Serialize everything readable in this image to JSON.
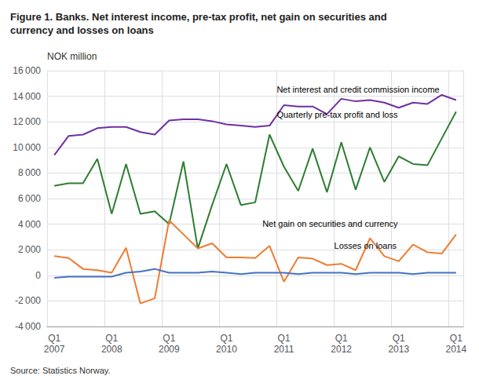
{
  "chart_data": {
    "type": "line",
    "title": "Figure 1. Banks. Net interest income, pre-tax profit, net gain on securities and\ncurrency and losses on loans",
    "y_label": "NOK million",
    "source": "Source: Statistics Norway.",
    "categories": [
      "Q1\n2007",
      null,
      null,
      null,
      "Q1\n2008",
      null,
      null,
      null,
      "Q1\n2009",
      null,
      null,
      null,
      "Q1\n2010",
      null,
      null,
      null,
      "Q1\n2011",
      null,
      null,
      null,
      "Q1\n2012",
      null,
      null,
      null,
      "Q1\n2013",
      null,
      null,
      null,
      "Q1\n2014"
    ],
    "series": [
      {
        "color": "#7030A0",
        "values": [
          9400,
          10900,
          11000,
          11500,
          11600,
          11600,
          11200,
          11000,
          12100,
          12200,
          12200,
          12050,
          11800,
          11700,
          11600,
          11700,
          13300,
          13200,
          13200,
          12600,
          13800,
          13600,
          13700,
          13500,
          13100,
          13500,
          13400,
          14100,
          13700
        ]
      },
      {
        "color": "#2E7D32",
        "values": [
          7000,
          7200,
          7200,
          9100,
          4800,
          8700,
          4800,
          5000,
          4000,
          8900,
          2100,
          5500,
          8700,
          5500,
          5700,
          11000,
          8500,
          6600,
          9900,
          6500,
          10400,
          6700,
          10000,
          7300,
          9300,
          8700,
          8600,
          10700,
          12800
        ]
      },
      {
        "color": "#ED7D31",
        "values": [
          1500,
          1350,
          500,
          400,
          200,
          2150,
          -2200,
          -1800,
          4300,
          3200,
          2100,
          2500,
          1400,
          1400,
          1350,
          2300,
          -500,
          1400,
          1300,
          800,
          900,
          400,
          2900,
          1500,
          1100,
          2400,
          1800,
          1700,
          3200
        ]
      },
      {
        "color": "#4472C4",
        "values": [
          -200,
          -100,
          -100,
          -100,
          -100,
          200,
          300,
          500,
          200,
          200,
          200,
          300,
          200,
          100,
          200,
          200,
          200,
          100,
          200,
          200,
          200,
          100,
          200,
          200,
          200,
          100,
          200,
          200,
          200
        ]
      }
    ],
    "annotations": [
      {
        "text": "Net interest and credit commission income",
        "x": 15.5,
        "y": 14200
      },
      {
        "text": "Quarterly pre-tax profit and loss",
        "x": 15.5,
        "y": 12200
      },
      {
        "text": "Net gain on securities and currency",
        "x": 14.5,
        "y": 3700
      },
      {
        "text": "Losses on loans",
        "x": 19.5,
        "y": 2000
      }
    ],
    "ylim": [
      -4000,
      16000
    ],
    "yticks": [
      {
        "value": -4000,
        "label": "-4 000"
      },
      {
        "value": -2000,
        "label": "-2 000"
      },
      0,
      {
        "value": 2000,
        "label": "2 000"
      },
      {
        "value": 4000,
        "label": "4 000"
      },
      {
        "value": 6000,
        "label": "6 000"
      },
      {
        "value": 8000,
        "label": "8 000"
      },
      {
        "value": 10000,
        "label": "10 000"
      },
      {
        "value": 12000,
        "label": "12 000"
      },
      {
        "value": 14000,
        "label": "14 000"
      },
      {
        "value": 16000,
        "label": "16 000"
      }
    ],
    "grid": true
  }
}
